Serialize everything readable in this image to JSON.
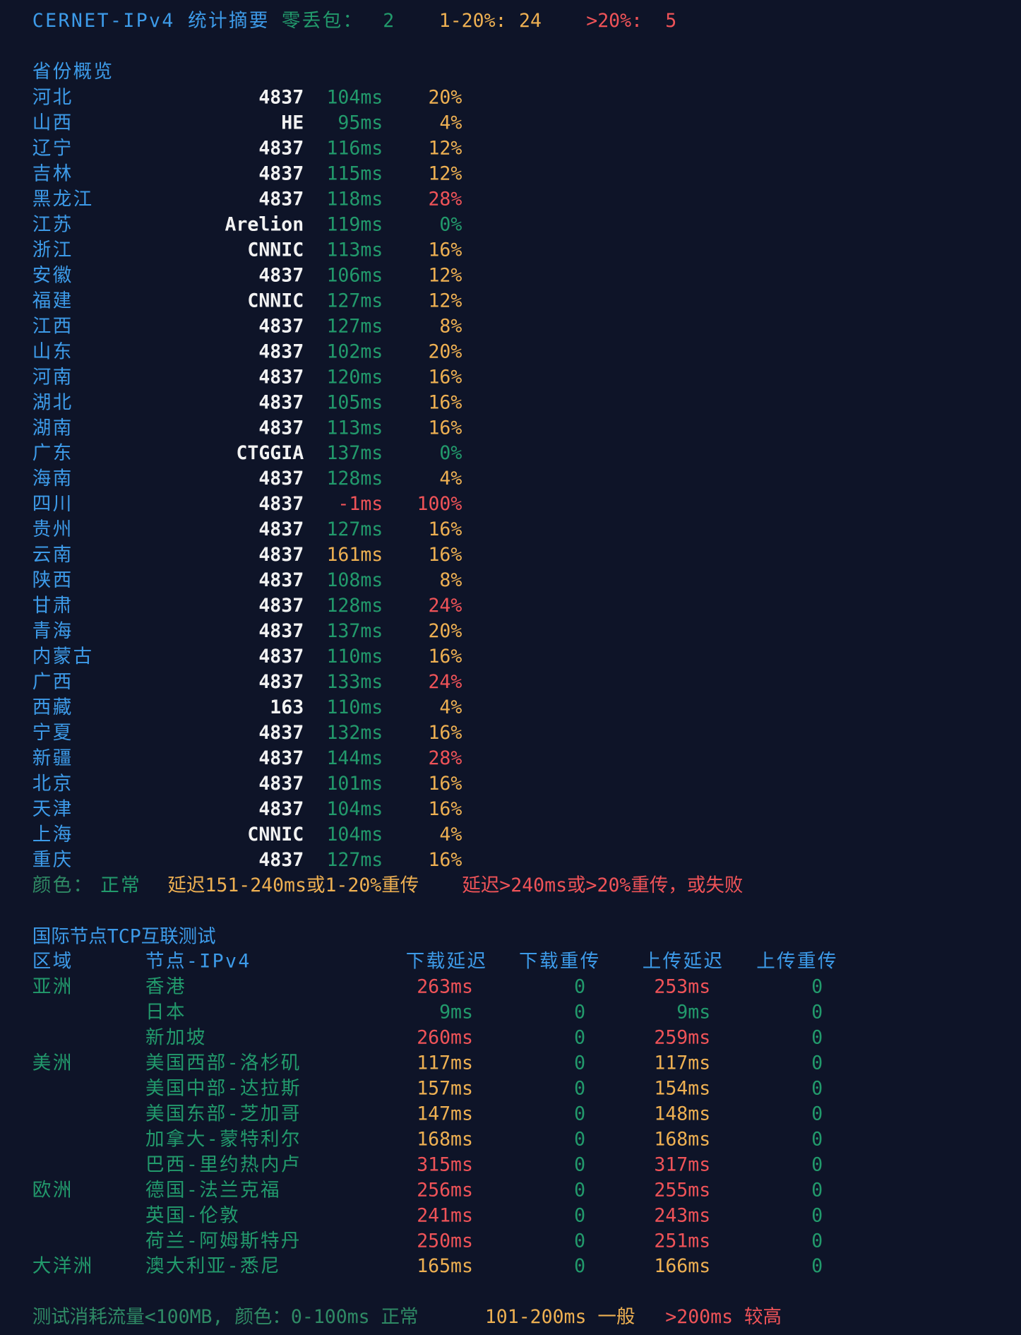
{
  "palette": {
    "blue": "#3d9be9",
    "green": "#229a6c",
    "orange": "#eeb052",
    "red": "#ef5358",
    "white": "#f2f2f2",
    "muted": "#2f8a65"
  },
  "summary": {
    "title": "CERNET-IPv4 统计摘要",
    "zero_label": "零丢包：",
    "zero_count": 2,
    "mid_label": "1-20%:",
    "mid_count": 24,
    "high_label": ">20%:",
    "high_count": 5
  },
  "provinces": {
    "title": "省份概览",
    "rows": [
      [
        "河北",
        "4837",
        "104ms",
        "green",
        "20%",
        "orange"
      ],
      [
        "山西",
        "HE",
        "95ms",
        "green",
        "4%",
        "orange"
      ],
      [
        "辽宁",
        "4837",
        "116ms",
        "green",
        "12%",
        "orange"
      ],
      [
        "吉林",
        "4837",
        "115ms",
        "green",
        "12%",
        "orange"
      ],
      [
        "黑龙江",
        "4837",
        "118ms",
        "green",
        "28%",
        "red"
      ],
      [
        "江苏",
        "Arelion",
        "119ms",
        "green",
        "0%",
        "green"
      ],
      [
        "浙江",
        "CNNIC",
        "113ms",
        "green",
        "16%",
        "orange"
      ],
      [
        "安徽",
        "4837",
        "106ms",
        "green",
        "12%",
        "orange"
      ],
      [
        "福建",
        "CNNIC",
        "127ms",
        "green",
        "12%",
        "orange"
      ],
      [
        "江西",
        "4837",
        "127ms",
        "green",
        "8%",
        "orange"
      ],
      [
        "山东",
        "4837",
        "102ms",
        "green",
        "20%",
        "orange"
      ],
      [
        "河南",
        "4837",
        "120ms",
        "green",
        "16%",
        "orange"
      ],
      [
        "湖北",
        "4837",
        "105ms",
        "green",
        "16%",
        "orange"
      ],
      [
        "湖南",
        "4837",
        "113ms",
        "green",
        "16%",
        "orange"
      ],
      [
        "广东",
        "CTGGIA",
        "137ms",
        "green",
        "0%",
        "green"
      ],
      [
        "海南",
        "4837",
        "128ms",
        "green",
        "4%",
        "orange"
      ],
      [
        "四川",
        "4837",
        "-1ms",
        "red",
        "100%",
        "red"
      ],
      [
        "贵州",
        "4837",
        "127ms",
        "green",
        "16%",
        "orange"
      ],
      [
        "云南",
        "4837",
        "161ms",
        "orange",
        "16%",
        "orange"
      ],
      [
        "陕西",
        "4837",
        "108ms",
        "green",
        "8%",
        "orange"
      ],
      [
        "甘肃",
        "4837",
        "128ms",
        "green",
        "24%",
        "red"
      ],
      [
        "青海",
        "4837",
        "137ms",
        "green",
        "20%",
        "orange"
      ],
      [
        "内蒙古",
        "4837",
        "110ms",
        "green",
        "16%",
        "orange"
      ],
      [
        "广西",
        "4837",
        "133ms",
        "green",
        "24%",
        "red"
      ],
      [
        "西藏",
        "163",
        "110ms",
        "green",
        "4%",
        "orange"
      ],
      [
        "宁夏",
        "4837",
        "132ms",
        "green",
        "16%",
        "orange"
      ],
      [
        "新疆",
        "4837",
        "144ms",
        "green",
        "28%",
        "red"
      ],
      [
        "北京",
        "4837",
        "101ms",
        "green",
        "16%",
        "orange"
      ],
      [
        "天津",
        "4837",
        "104ms",
        "green",
        "16%",
        "orange"
      ],
      [
        "上海",
        "CNNIC",
        "104ms",
        "green",
        "4%",
        "orange"
      ],
      [
        "重庆",
        "4837",
        "127ms",
        "green",
        "16%",
        "orange"
      ]
    ]
  },
  "legend": {
    "label": "颜色：",
    "normal": "正常",
    "warn": "延迟151-240ms或1-20%重传",
    "bad": "延迟>240ms或>20%重传，或失败"
  },
  "international": {
    "title": "国际节点TCP互联测试",
    "headers": [
      "区域",
      "节点-IPv4",
      "下载延迟",
      "下载重传",
      "上传延迟",
      "上传重传"
    ],
    "rows": [
      [
        "亚洲",
        "香港",
        "263ms",
        "red",
        0,
        "253ms",
        "red",
        0
      ],
      [
        null,
        "日本",
        "9ms",
        "green",
        0,
        "9ms",
        "green",
        0
      ],
      [
        null,
        "新加坡",
        "260ms",
        "red",
        0,
        "259ms",
        "red",
        0
      ],
      [
        "美洲",
        "美国西部-洛杉矶",
        "117ms",
        "orange",
        0,
        "117ms",
        "orange",
        0
      ],
      [
        null,
        "美国中部-达拉斯",
        "157ms",
        "orange",
        0,
        "154ms",
        "orange",
        0
      ],
      [
        null,
        "美国东部-芝加哥",
        "147ms",
        "orange",
        0,
        "148ms",
        "orange",
        0
      ],
      [
        null,
        "加拿大-蒙特利尔",
        "168ms",
        "orange",
        0,
        "168ms",
        "orange",
        0
      ],
      [
        null,
        "巴西-里约热内卢",
        "315ms",
        "red",
        0,
        "317ms",
        "red",
        0
      ],
      [
        "欧洲",
        "德国-法兰克福",
        "256ms",
        "red",
        0,
        "255ms",
        "red",
        0
      ],
      [
        null,
        "英国-伦敦",
        "241ms",
        "red",
        0,
        "243ms",
        "red",
        0
      ],
      [
        null,
        "荷兰-阿姆斯特丹",
        "250ms",
        "red",
        0,
        "251ms",
        "red",
        0
      ],
      [
        "大洋洲",
        "澳大利亚-悉尼",
        "165ms",
        "orange",
        0,
        "166ms",
        "orange",
        0
      ]
    ]
  },
  "footer": {
    "note": "测试消耗流量<100MB, 颜色：0-100ms 正常",
    "mid": "101-200ms 一般",
    "high": ">200ms 较高"
  }
}
